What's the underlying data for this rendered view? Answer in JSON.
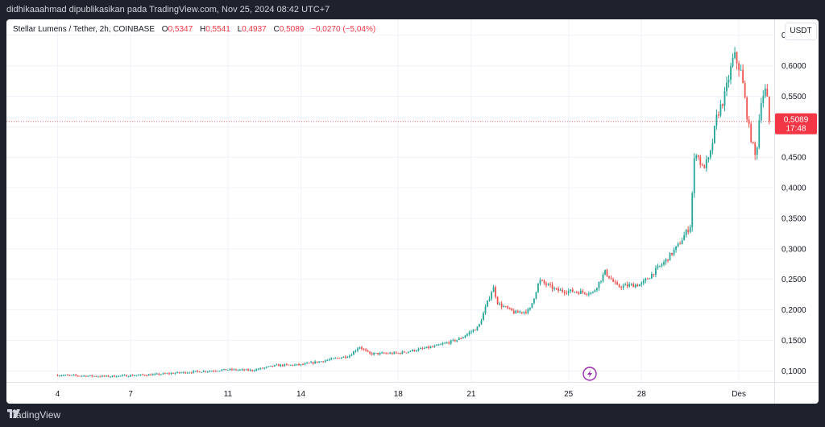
{
  "header": {
    "publisher_line": "didhikaaahmad dipublikasikan pada TradingView.com, Nov 25, 2024 08:42 UTC+7"
  },
  "legend": {
    "symbol": "Stellar Lumens / Tether, 2h, COINBASE",
    "o_label": "O",
    "o_value": "0,5347",
    "h_label": "H",
    "h_value": "0,5541",
    "l_label": "L",
    "l_value": "0,4937",
    "c_label": "C",
    "c_value": "0,5089",
    "change": "−0,0270 (−5,04%)"
  },
  "currency_button": "USDT",
  "price_tag": {
    "price": "0,5089",
    "countdown": "17:48"
  },
  "brand": {
    "name": "TradingView"
  },
  "colors": {
    "up": "#26a69a",
    "down": "#ef5350",
    "price_tag": "#f23645",
    "grid": "#f0f3fa",
    "axis_text": "#131722"
  },
  "icons": {
    "event_marker": "lightning-icon",
    "brand_logo": "tradingview-logo-icon"
  },
  "chart_data": {
    "type": "candlestick",
    "ylim": [
      0.082,
      0.676
    ],
    "y_ticks": [
      "0,1000",
      "0,1500",
      "0,2000",
      "0,2500",
      "0,3000",
      "0,3500",
      "0,4000",
      "0,4500",
      "0,5000",
      "0,5500",
      "0,6000",
      "0,6500"
    ],
    "y_tick_values": [
      0.1,
      0.15,
      0.2,
      0.25,
      0.3,
      0.35,
      0.4,
      0.45,
      0.5,
      0.55,
      0.6,
      0.65
    ],
    "x_ticks": [
      "4",
      "7",
      "11",
      "14",
      "18",
      "21",
      "25",
      "28",
      "Des"
    ],
    "last_price": 0.5089,
    "anchors": [
      {
        "d": 0,
        "p": 0.093
      },
      {
        "d": 2,
        "p": 0.091
      },
      {
        "d": 4,
        "p": 0.094
      },
      {
        "d": 5,
        "p": 0.097
      },
      {
        "d": 7,
        "p": 0.102
      },
      {
        "d": 8,
        "p": 0.101
      },
      {
        "d": 9,
        "p": 0.109
      },
      {
        "d": 10,
        "p": 0.11
      },
      {
        "d": 11,
        "p": 0.117
      },
      {
        "d": 12,
        "p": 0.125
      },
      {
        "d": 12.4,
        "p": 0.14
      },
      {
        "d": 12.8,
        "p": 0.128
      },
      {
        "d": 14,
        "p": 0.129
      },
      {
        "d": 15.5,
        "p": 0.14
      },
      {
        "d": 16.5,
        "p": 0.152
      },
      {
        "d": 17.3,
        "p": 0.172
      },
      {
        "d": 17.9,
        "p": 0.238
      },
      {
        "d": 18.1,
        "p": 0.21
      },
      {
        "d": 18.8,
        "p": 0.195
      },
      {
        "d": 19.4,
        "p": 0.199
      },
      {
        "d": 19.8,
        "p": 0.248
      },
      {
        "d": 20.5,
        "p": 0.232
      },
      {
        "d": 22,
        "p": 0.228
      },
      {
        "d": 22.5,
        "p": 0.262
      },
      {
        "d": 23,
        "p": 0.238
      },
      {
        "d": 24,
        "p": 0.242
      },
      {
        "d": 25,
        "p": 0.281
      },
      {
        "d": 25.5,
        "p": 0.305
      },
      {
        "d": 26,
        "p": 0.338
      },
      {
        "d": 26.2,
        "p": 0.465
      },
      {
        "d": 26.5,
        "p": 0.432
      },
      {
        "d": 26.8,
        "p": 0.448
      },
      {
        "d": 27.1,
        "p": 0.518
      },
      {
        "d": 27.4,
        "p": 0.548
      },
      {
        "d": 27.8,
        "p": 0.618
      },
      {
        "d": 28.1,
        "p": 0.588
      },
      {
        "d": 28.4,
        "p": 0.5
      },
      {
        "d": 28.7,
        "p": 0.446
      },
      {
        "d": 28.9,
        "p": 0.545
      },
      {
        "d": 29.1,
        "p": 0.56
      },
      {
        "d": 29.3,
        "p": 0.5089
      }
    ]
  }
}
